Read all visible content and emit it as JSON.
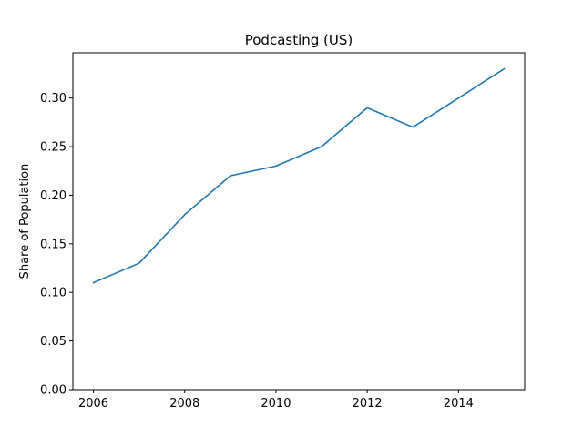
{
  "chart_data": {
    "type": "line",
    "title": "Podcasting (US)",
    "xlabel": "",
    "ylabel": "Share of Population",
    "x": [
      2006,
      2007,
      2008,
      2009,
      2010,
      2011,
      2012,
      2013,
      2014,
      2015
    ],
    "series": [
      {
        "values": [
          0.11,
          0.13,
          0.18,
          0.22,
          0.23,
          0.25,
          0.29,
          0.27,
          0.3,
          0.33
        ],
        "color": "#1f77b4"
      }
    ],
    "xlim": [
      2005.55,
      2015.45
    ],
    "ylim": [
      0.0,
      0.3465
    ],
    "xticks": [
      2006,
      2008,
      2010,
      2012,
      2014
    ],
    "xtick_labels": [
      "2006",
      "2008",
      "2010",
      "2012",
      "2014"
    ],
    "yticks": [
      0.0,
      0.05,
      0.1,
      0.15,
      0.2,
      0.25,
      0.3
    ],
    "ytick_labels": [
      "0.00",
      "0.05",
      "0.10",
      "0.15",
      "0.20",
      "0.25",
      "0.30"
    ],
    "grid": false,
    "legend": "none"
  }
}
